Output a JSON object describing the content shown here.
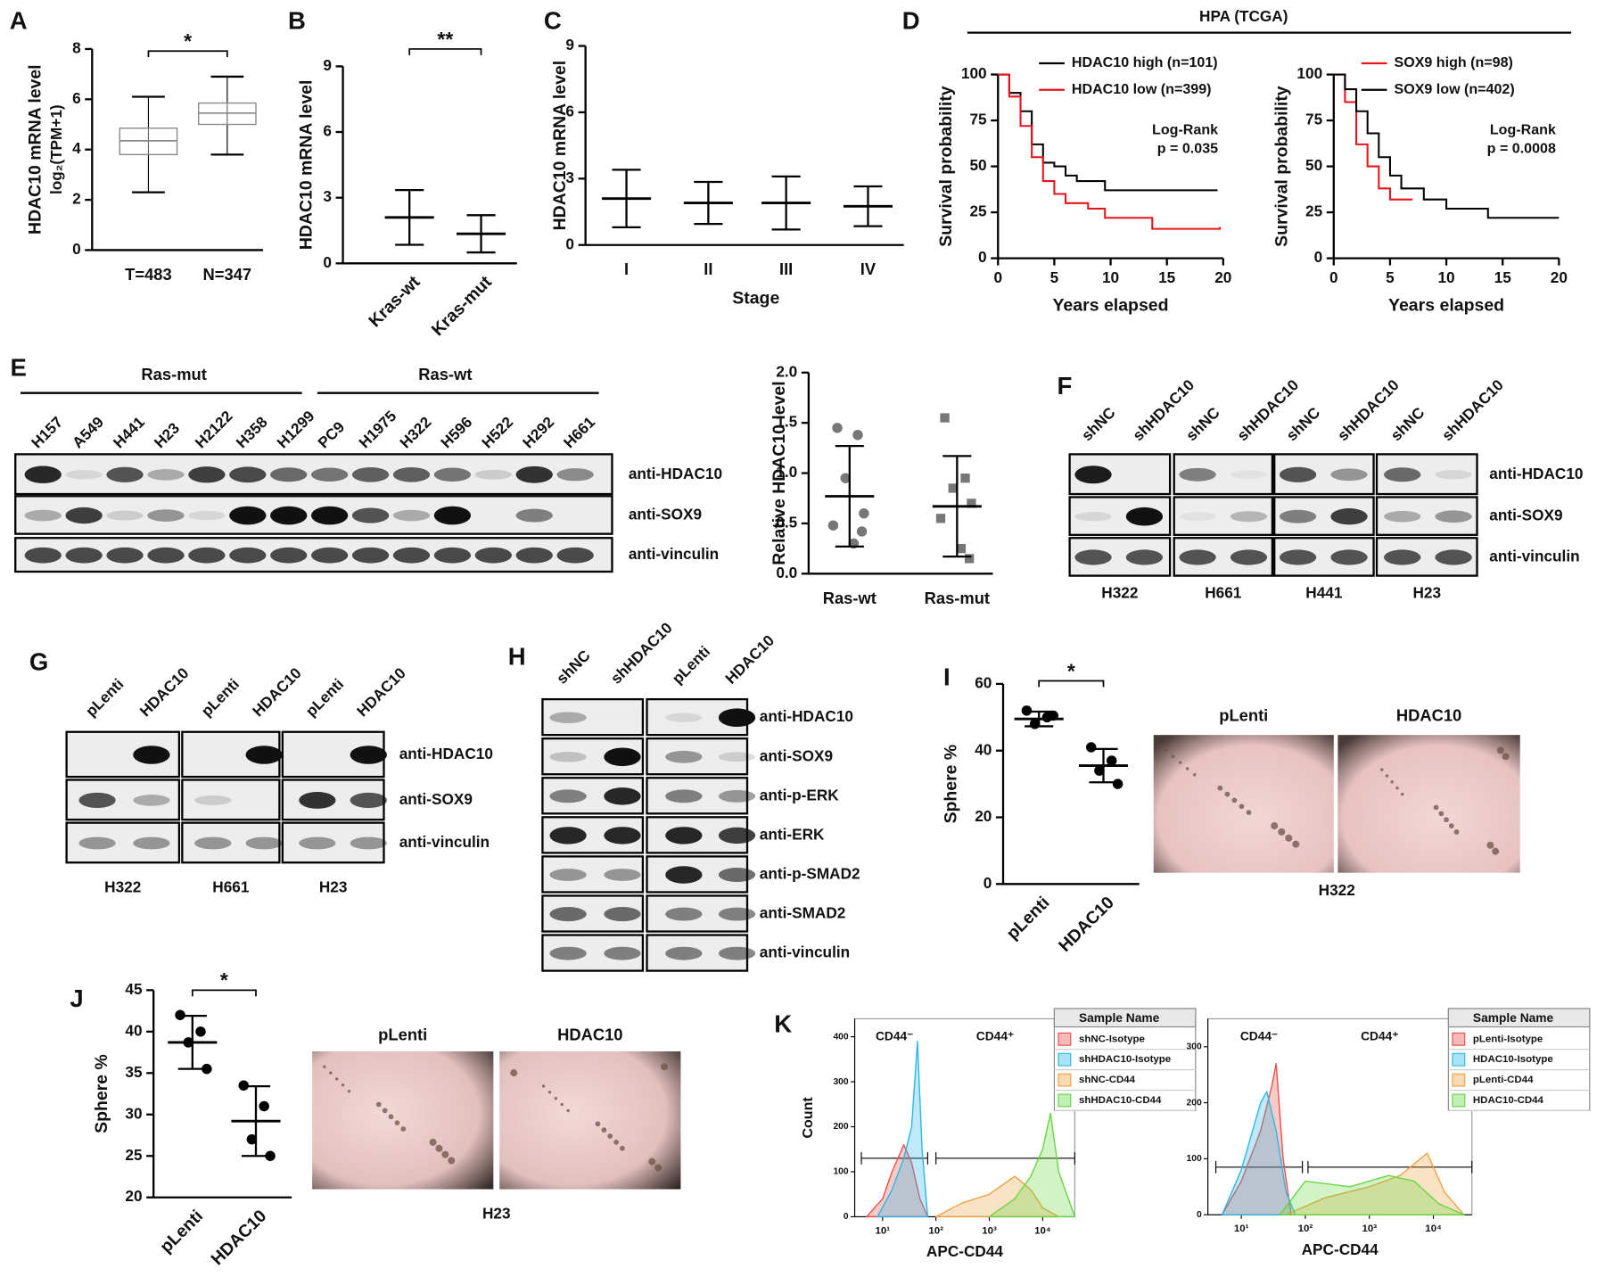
{
  "panel_labels": [
    "A",
    "B",
    "C",
    "D",
    "E",
    "F",
    "G",
    "H",
    "I",
    "J",
    "K"
  ],
  "panel_D_title": "HPA (TCGA)",
  "chart_data": [
    {
      "type": "box",
      "ylabel": "HDAC10 mRNA level",
      "ylabel2": "log₂(TPM+1)",
      "categories": [
        "T=483",
        "N=347"
      ],
      "boxes": [
        {
          "low": 2.3,
          "q1": 3.8,
          "median": 4.35,
          "q3": 4.85,
          "high": 6.1
        },
        {
          "low": 3.8,
          "q1": 5.0,
          "median": 5.45,
          "q3": 5.85,
          "high": 6.9
        }
      ],
      "color": "#888888",
      "ylim": [
        0,
        8
      ],
      "yticks": [
        0,
        2,
        4,
        6,
        8
      ],
      "significance": "*"
    },
    {
      "type": "dot",
      "ylabel": "HDAC10 mRNA level",
      "categories": [
        "Kras-wt",
        "Kras-mut"
      ],
      "means": [
        2.1,
        1.35
      ],
      "sds": [
        1.25,
        0.85
      ],
      "ylim": [
        0,
        9
      ],
      "yticks": [
        0,
        3,
        6,
        9
      ],
      "significance": "**",
      "xtick_rotation": -45,
      "color": "#555555"
    },
    {
      "type": "dot",
      "ylabel": "HDAC10 mRNA level",
      "xlabel": "Stage",
      "categories": [
        "I",
        "II",
        "III",
        "IV"
      ],
      "means": [
        2.1,
        1.9,
        1.9,
        1.75
      ],
      "sds": [
        1.3,
        0.95,
        1.2,
        0.9
      ],
      "ylim": [
        0,
        9
      ],
      "yticks": [
        0,
        3,
        6,
        9
      ],
      "color": "#555555"
    },
    {
      "type": "km",
      "xlabel": "Years elapsed",
      "ylabel": "Survival probability",
      "xlim": [
        0,
        20
      ],
      "xticks": [
        0,
        5,
        10,
        15,
        20
      ],
      "ylim": [
        0,
        100
      ],
      "yticks": [
        0,
        25,
        50,
        75,
        100
      ],
      "annotations": [
        "Log-Rank",
        "p = 0.035"
      ],
      "series": [
        {
          "name": "HDAC10 high (n=101)",
          "color": "#000000",
          "x": [
            0,
            1,
            2,
            3,
            4,
            5,
            6,
            7,
            9.5,
            13.7,
            19.5
          ],
          "values": [
            100,
            90,
            80,
            62,
            52,
            50,
            45,
            42,
            37,
            37,
            37
          ]
        },
        {
          "name": "HDAC10 low (n=399)",
          "color": "#e8141b",
          "x": [
            0,
            1,
            2,
            3,
            4,
            5,
            6,
            8,
            9.5,
            13.7,
            19.7
          ],
          "values": [
            100,
            88,
            72,
            55,
            42,
            35,
            30,
            27,
            22,
            16,
            17
          ]
        }
      ]
    },
    {
      "type": "km",
      "xlabel": "Years elapsed",
      "ylabel": "Survival probability",
      "xlim": [
        0,
        20
      ],
      "xticks": [
        0,
        5,
        10,
        15,
        20
      ],
      "ylim": [
        0,
        100
      ],
      "yticks": [
        0,
        25,
        50,
        75,
        100
      ],
      "annotations": [
        "Log-Rank",
        "p = 0.0008"
      ],
      "series": [
        {
          "name": "SOX9 high (n=98)",
          "color": "#e8141b",
          "x": [
            0,
            1,
            2,
            3,
            4,
            5,
            7
          ],
          "values": [
            100,
            85,
            62,
            50,
            38,
            32,
            32
          ]
        },
        {
          "name": "SOX9 low (n=402)",
          "color": "#000000",
          "x": [
            0,
            1,
            2,
            3,
            4,
            5,
            6,
            8,
            10,
            13.7,
            20
          ],
          "values": [
            100,
            92,
            80,
            68,
            55,
            45,
            38,
            32,
            27,
            22,
            22
          ]
        }
      ]
    },
    {
      "type": "dot",
      "ylabel": "Relative HDAC10 level",
      "categories": [
        "Ras-wt",
        "Ras-mut"
      ],
      "means": [
        0.77,
        0.67
      ],
      "sds": [
        0.5,
        0.5
      ],
      "points": [
        [
          1.45,
          1.38,
          0.95,
          0.6,
          0.48,
          0.3,
          0.42
        ],
        [
          1.55,
          0.95,
          0.85,
          0.7,
          0.55,
          0.25,
          0.15
        ]
      ],
      "markers": [
        "circle",
        "square"
      ],
      "ylim": [
        0,
        2
      ],
      "yticks": [
        {
          "value": 0,
          "label": "0.0"
        },
        0.5,
        {
          "value": 1,
          "label": "1.0"
        },
        1.5,
        {
          "value": 2,
          "label": "2.0"
        }
      ],
      "color": "#777777"
    },
    {
      "type": "dot",
      "ylabel": "Sphere %",
      "categories": [
        "pLenti",
        "HDAC10"
      ],
      "means": [
        49.5,
        35.5
      ],
      "sds": [
        2.2,
        5.0
      ],
      "points": [
        [
          52,
          50,
          48,
          50.5
        ],
        [
          41,
          37,
          34,
          30
        ]
      ],
      "markers": [
        "circle",
        "circle"
      ],
      "ylim": [
        0,
        60
      ],
      "yticks": [
        0,
        20,
        40,
        60
      ],
      "significance": "*",
      "xtick_rotation": -45,
      "color": "#000000"
    },
    {
      "type": "dot",
      "ylabel": "Sphere %",
      "categories": [
        "pLenti",
        "HDAC10"
      ],
      "means": [
        38.7,
        29.2
      ],
      "sds": [
        3.2,
        4.2
      ],
      "points": [
        [
          42,
          40,
          38.7,
          35.5
        ],
        [
          33.5,
          31,
          27,
          25
        ]
      ],
      "markers": [
        "circle",
        "circle"
      ],
      "ylim": [
        20,
        45
      ],
      "yticks": [
        20,
        25,
        30,
        35,
        40,
        45
      ],
      "significance": "*",
      "xtick_rotation": -45,
      "color": "#000000"
    },
    {
      "type": "area",
      "log_x": true,
      "xlabel": "APC-CD44",
      "ylabel": "Count",
      "xlim": [
        3,
        40000
      ],
      "xticks": [
        {
          "value": 10,
          "label": "10¹"
        },
        {
          "value": 100,
          "label": "10²"
        },
        {
          "value": 1000,
          "label": "10³"
        },
        {
          "value": 10000,
          "label": "10⁴"
        }
      ],
      "ylim": [
        0,
        440
      ],
      "yticks": [
        0,
        100,
        200,
        300,
        400
      ],
      "gates": [
        {
          "label": "CD44⁻",
          "x": [
            4,
            70
          ],
          "y": 130
        },
        {
          "label": "CD44⁺",
          "x": [
            100,
            40000
          ],
          "y": 130
        }
      ],
      "legend_title": "Sample Name",
      "series": [
        {
          "name": "shNC-Isotype",
          "color": "#e8504a",
          "x": [
            5,
            10,
            15,
            25,
            35,
            50,
            70
          ],
          "values": [
            0,
            40,
            100,
            160,
            120,
            40,
            0
          ]
        },
        {
          "name": "shHDAC10-Isotype",
          "color": "#2bb6e8",
          "x": [
            8,
            15,
            25,
            35,
            45,
            55,
            70
          ],
          "values": [
            0,
            60,
            130,
            200,
            390,
            150,
            0
          ]
        },
        {
          "name": "shNC-CD44",
          "color": "#f0a040",
          "x": [
            100,
            300,
            1000,
            3000,
            6000,
            10000,
            20000
          ],
          "values": [
            0,
            30,
            50,
            90,
            60,
            20,
            0
          ]
        },
        {
          "name": "shHDAC10-CD44",
          "color": "#66d640",
          "x": [
            1000,
            3000,
            6000,
            10000,
            14000,
            20000,
            40000
          ],
          "values": [
            0,
            40,
            90,
            150,
            230,
            100,
            0
          ]
        }
      ]
    },
    {
      "type": "area",
      "log_x": true,
      "xlabel": "APC-CD44",
      "xlim": [
        3,
        40000
      ],
      "xticks": [
        {
          "value": 10,
          "label": "10¹"
        },
        {
          "value": 100,
          "label": "10²"
        },
        {
          "value": 1000,
          "label": "10³"
        },
        {
          "value": 10000,
          "label": "10⁴"
        }
      ],
      "ylim": [
        0,
        350
      ],
      "yticks": [
        0,
        100,
        200,
        300
      ],
      "gates": [
        {
          "label": "CD44⁻",
          "x": [
            4,
            90
          ],
          "y": 85
        },
        {
          "label": "CD44⁺",
          "x": [
            110,
            40000
          ],
          "y": 85
        }
      ],
      "legend_title": "Sample Name",
      "series": [
        {
          "name": "pLenti-Isotype",
          "color": "#e8504a",
          "x": [
            5,
            10,
            20,
            30,
            35,
            45,
            60
          ],
          "values": [
            0,
            60,
            150,
            230,
            270,
            100,
            0
          ]
        },
        {
          "name": "HDAC10-Isotype",
          "color": "#2bb6e8",
          "x": [
            5,
            10,
            20,
            25,
            35,
            50,
            70
          ],
          "values": [
            0,
            80,
            200,
            220,
            150,
            40,
            0
          ]
        },
        {
          "name": "pLenti-CD44",
          "color": "#f0a040",
          "x": [
            50,
            200,
            1000,
            3000,
            8000,
            15000,
            30000
          ],
          "values": [
            0,
            30,
            50,
            70,
            110,
            40,
            0
          ]
        },
        {
          "name": "HDAC10-CD44",
          "color": "#66d640",
          "x": [
            40,
            100,
            500,
            2000,
            5000,
            12000,
            30000
          ],
          "values": [
            0,
            60,
            50,
            70,
            60,
            20,
            0
          ]
        }
      ]
    }
  ],
  "blots": {
    "E": {
      "groups": [
        "Ras-mut",
        "Ras-wt"
      ],
      "lanes": [
        "H157",
        "A549",
        "H441",
        "H23",
        "H2122",
        "H358",
        "H1299",
        "PC9",
        "H1975",
        "H322",
        "H596",
        "H522",
        "H292",
        "H661"
      ],
      "rows": [
        "anti-HDAC10",
        "anti-SOX9",
        "anti-vinculin"
      ]
    },
    "F": {
      "lanes": [
        "shNC",
        "shHDAC10",
        "shNC",
        "shHDAC10",
        "shNC",
        "shHDAC10",
        "shNC",
        "shHDAC10"
      ],
      "rows": [
        "anti-HDAC10",
        "anti-SOX9",
        "anti-vinculin"
      ],
      "cell_lines": [
        "H322",
        "H661",
        "H441",
        "H23"
      ]
    },
    "G": {
      "lanes": [
        "pLenti",
        "HDAC10",
        "pLenti",
        "HDAC10",
        "pLenti",
        "HDAC10"
      ],
      "rows": [
        "anti-HDAC10",
        "anti-SOX9",
        "anti-vinculin"
      ],
      "cell_lines": [
        "H322",
        "H661",
        "H23"
      ]
    },
    "H": {
      "lanes": [
        "shNC",
        "shHDAC10",
        "pLenti",
        "HDAC10"
      ],
      "rows": [
        "anti-HDAC10",
        "anti-SOX9",
        "anti-p-ERK",
        "anti-ERK",
        "anti-p-SMAD2",
        "anti-SMAD2",
        "anti-vinculin"
      ]
    }
  },
  "photos": {
    "I": {
      "labels": [
        "pLenti",
        "HDAC10"
      ],
      "caption": "H322"
    },
    "J": {
      "labels": [
        "pLenti",
        "HDAC10"
      ],
      "caption": "H23"
    }
  }
}
